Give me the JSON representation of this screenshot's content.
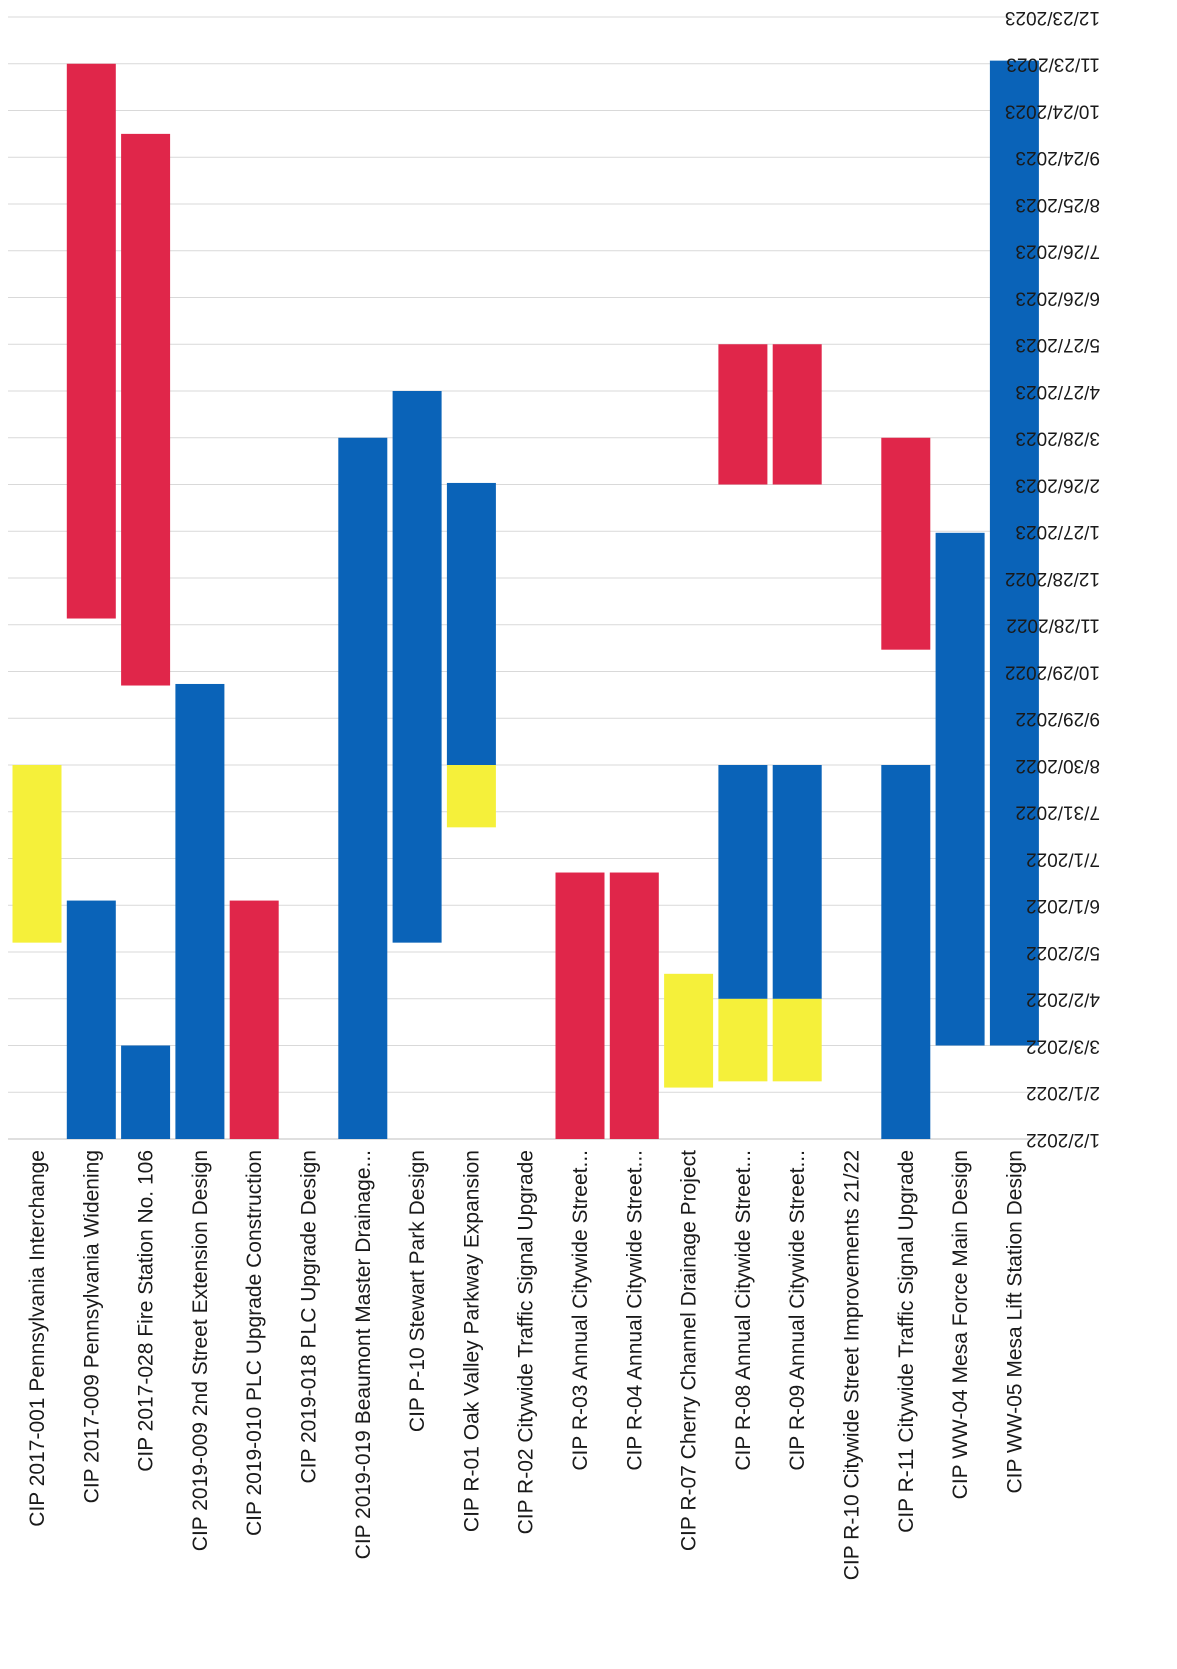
{
  "chart_data": {
    "type": "bar",
    "orientation": "vertical-floating (gantt)",
    "title": "",
    "xlabel": "",
    "ylabel": "",
    "categories": [
      "CIP 2017-001 Pennsylvania Interchange",
      "CIP 2017-009 Pennsylvania Widening",
      "CIP 2017-028 Fire Station No. 106",
      "CIP 2019-009 2nd Street Extension Design",
      "CIP 2019-010 PLC Upgrade Construction",
      "CIP 2019-018 PLC Upgrade Design",
      "CIP 2019-019 Beaumont Master Drainage...",
      "CIP P-10 Stewart Park Design",
      "CIP R-01 Oak Valley Parkway Expansion",
      "CIP R-02 Citywide Traffic Signal Upgrade",
      "CIP R-03 Annual Citywide Street...",
      "CIP R-04 Annual Citywide Street...",
      "CIP R-07 Cherry Channel Drainage Project",
      "CIP R-08 Annual Citywide Street...",
      "CIP R-09 Annual Citywide Street...",
      "CIP R-10 Citywide Street Improvements 21/22",
      "CIP R-11 Citywide Traffic Signal Upgrade",
      "CIP WW-04 Mesa Force Main Design",
      "CIP WW-05 Mesa Lift Station Design"
    ],
    "date_ticks": [
      "1/2/2022",
      "2/1/2022",
      "3/3/2022",
      "4/2/2022",
      "5/2/2022",
      "6/1/2022",
      "7/1/2022",
      "7/31/2022",
      "8/30/2022",
      "9/29/2022",
      "10/29/2022",
      "11/28/2022",
      "12/28/2022",
      "1/27/2023",
      "2/26/2023",
      "3/28/2023",
      "4/27/2023",
      "5/27/2023",
      "6/26/2023",
      "7/26/2023",
      "8/25/2023",
      "9/24/2023",
      "10/24/2023",
      "11/23/2023",
      "12/23/2023"
    ],
    "axis_range": [
      "2022-01-02",
      "2023-12-23"
    ],
    "grid": true,
    "colors": {
      "red": "#e0264a",
      "blue": "#0a63b8",
      "yellow": "#f5f03a"
    },
    "segments": [
      {
        "category": 0,
        "color": "yellow",
        "start": "2022-05-08",
        "end": "2022-08-30"
      },
      {
        "category": 1,
        "color": "blue",
        "start": "2022-01-02",
        "end": "2022-06-04"
      },
      {
        "category": 1,
        "color": "red",
        "start": "2022-12-02",
        "end": "2023-11-23"
      },
      {
        "category": 2,
        "color": "blue",
        "start": "2022-01-02",
        "end": "2022-03-03"
      },
      {
        "category": 2,
        "color": "red",
        "start": "2022-10-20",
        "end": "2023-10-09"
      },
      {
        "category": 3,
        "color": "blue",
        "start": "2022-01-02",
        "end": "2022-10-21"
      },
      {
        "category": 4,
        "color": "red",
        "start": "2022-01-02",
        "end": "2022-06-04"
      },
      {
        "category": 6,
        "color": "blue",
        "start": "2022-01-02",
        "end": "2023-03-28"
      },
      {
        "category": 7,
        "color": "blue",
        "start": "2022-05-08",
        "end": "2023-04-27"
      },
      {
        "category": 8,
        "color": "yellow",
        "start": "2022-07-21",
        "end": "2022-08-30"
      },
      {
        "category": 8,
        "color": "blue",
        "start": "2022-08-30",
        "end": "2023-02-27"
      },
      {
        "category": 10,
        "color": "red",
        "start": "2022-01-02",
        "end": "2022-06-22"
      },
      {
        "category": 11,
        "color": "red",
        "start": "2022-01-02",
        "end": "2022-06-22"
      },
      {
        "category": 12,
        "color": "yellow",
        "start": "2022-02-04",
        "end": "2022-04-18"
      },
      {
        "category": 13,
        "color": "yellow",
        "start": "2022-02-08",
        "end": "2022-04-02"
      },
      {
        "category": 13,
        "color": "blue",
        "start": "2022-04-02",
        "end": "2022-08-30"
      },
      {
        "category": 13,
        "color": "red",
        "start": "2023-02-26",
        "end": "2023-05-27"
      },
      {
        "category": 14,
        "color": "yellow",
        "start": "2022-02-08",
        "end": "2022-04-02"
      },
      {
        "category": 14,
        "color": "blue",
        "start": "2022-04-02",
        "end": "2022-08-30"
      },
      {
        "category": 14,
        "color": "red",
        "start": "2023-02-26",
        "end": "2023-05-27"
      },
      {
        "category": 16,
        "color": "blue",
        "start": "2022-01-02",
        "end": "2022-08-30"
      },
      {
        "category": 16,
        "color": "red",
        "start": "2022-11-12",
        "end": "2023-03-28"
      },
      {
        "category": 17,
        "color": "blue",
        "start": "2022-03-03",
        "end": "2023-01-26"
      },
      {
        "category": 18,
        "color": "blue",
        "start": "2022-03-03",
        "end": "2023-11-25"
      }
    ]
  }
}
